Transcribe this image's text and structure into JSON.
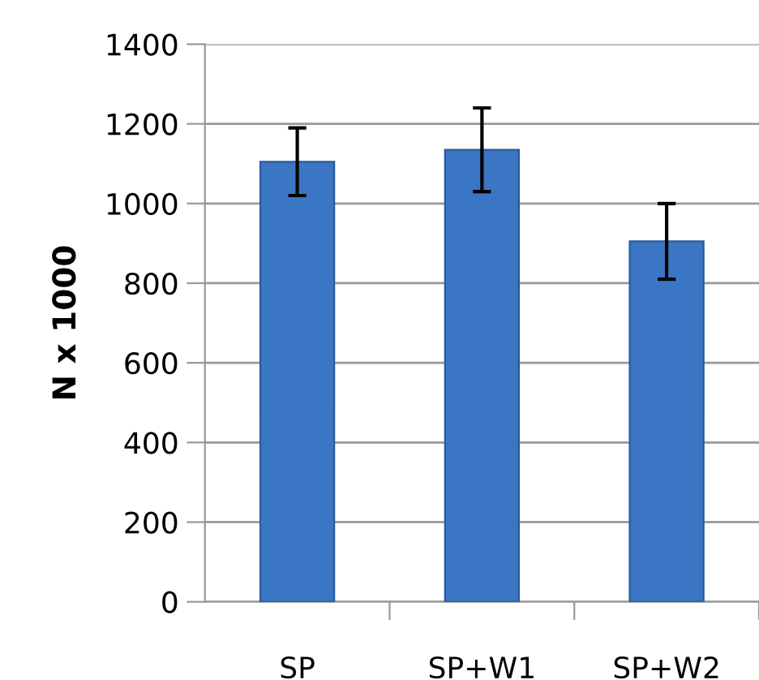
{
  "chart_data": {
    "type": "bar",
    "ylabel": "N x 1000",
    "categories": [
      "SP",
      "SP+W1",
      "SP+W2"
    ],
    "values": [
      1105,
      1135,
      905
    ],
    "errors": [
      85,
      105,
      95
    ],
    "color": "#3b76c4",
    "ylim": [
      0,
      1400
    ],
    "yticks": [
      0,
      200,
      400,
      600,
      800,
      1000,
      1200,
      1400
    ],
    "grid": "y",
    "legend": false
  }
}
